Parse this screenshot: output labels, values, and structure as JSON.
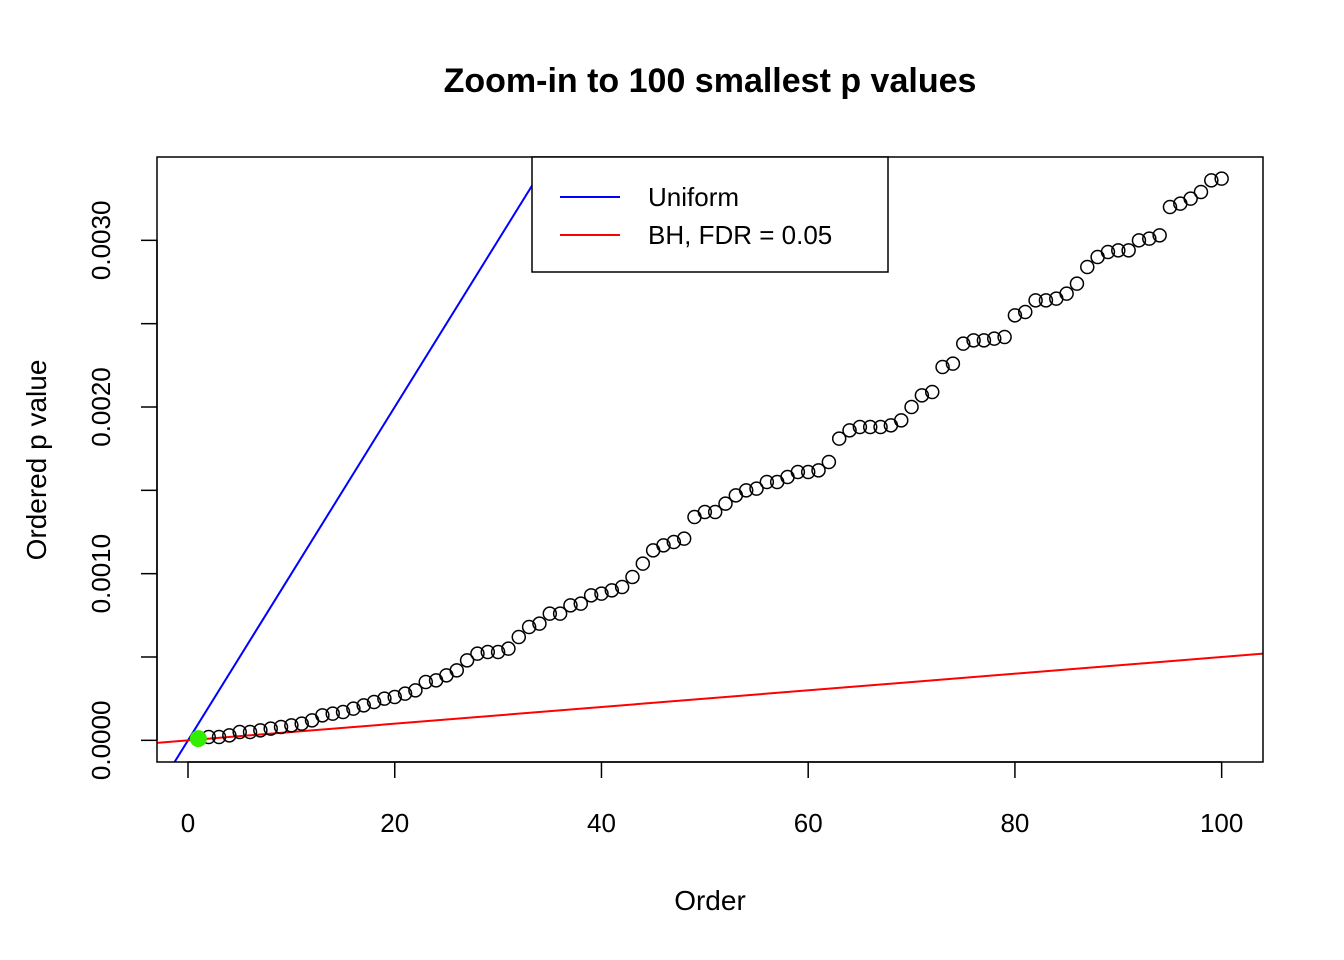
{
  "chart_data": {
    "type": "scatter",
    "title": "Zoom-in to 100 smallest p values",
    "xlabel": "Order",
    "ylabel": "Ordered p value",
    "xlim": [
      -3,
      104
    ],
    "ylim": [
      -0.00013,
      0.0035
    ],
    "xticks": [
      0,
      20,
      40,
      60,
      80,
      100
    ],
    "xtick_labels": [
      "0",
      "20",
      "40",
      "60",
      "80",
      "100"
    ],
    "yticks": [
      0,
      0.0005,
      0.001,
      0.0015,
      0.002,
      0.0025,
      0.003
    ],
    "ytick_labels": [
      "0.0000",
      "",
      "0.0010",
      "",
      "0.0020",
      "",
      "0.0030"
    ],
    "grid": false,
    "legend_position": "top-center",
    "series": [
      {
        "name": "",
        "kind": "points",
        "color": "#000000",
        "x": [
          1,
          2,
          3,
          4,
          5,
          6,
          7,
          8,
          9,
          10,
          11,
          12,
          13,
          14,
          15,
          16,
          17,
          18,
          19,
          20,
          21,
          22,
          23,
          24,
          25,
          26,
          27,
          28,
          29,
          30,
          31,
          32,
          33,
          34,
          35,
          36,
          37,
          38,
          39,
          40,
          41,
          42,
          43,
          44,
          45,
          46,
          47,
          48,
          49,
          50,
          51,
          52,
          53,
          54,
          55,
          56,
          57,
          58,
          59,
          60,
          61,
          62,
          63,
          64,
          65,
          66,
          67,
          68,
          69,
          70,
          71,
          72,
          73,
          74,
          75,
          76,
          77,
          78,
          79,
          80,
          81,
          82,
          83,
          84,
          85,
          86,
          87,
          88,
          89,
          90,
          91,
          92,
          93,
          94,
          95,
          96,
          97,
          98,
          99,
          100
        ],
        "y": [
          1e-05,
          2e-05,
          2e-05,
          3e-05,
          5e-05,
          5e-05,
          6e-05,
          7e-05,
          8e-05,
          9e-05,
          0.0001,
          0.00012,
          0.00015,
          0.00016,
          0.00017,
          0.00019,
          0.00021,
          0.00023,
          0.00025,
          0.00026,
          0.00028,
          0.0003,
          0.00035,
          0.00036,
          0.00039,
          0.00042,
          0.00048,
          0.00052,
          0.00053,
          0.00053,
          0.00055,
          0.00062,
          0.00068,
          0.0007,
          0.00076,
          0.00076,
          0.00081,
          0.00082,
          0.00087,
          0.00088,
          0.0009,
          0.00092,
          0.00098,
          0.00106,
          0.00114,
          0.00117,
          0.00119,
          0.00121,
          0.00134,
          0.00137,
          0.00137,
          0.00142,
          0.00147,
          0.0015,
          0.00151,
          0.00155,
          0.00155,
          0.00158,
          0.00161,
          0.00161,
          0.00162,
          0.00167,
          0.00181,
          0.00186,
          0.00188,
          0.00188,
          0.00188,
          0.00189,
          0.00192,
          0.002,
          0.00207,
          0.00209,
          0.00224,
          0.00226,
          0.00238,
          0.0024,
          0.0024,
          0.00241,
          0.00242,
          0.00255,
          0.00257,
          0.00264,
          0.00264,
          0.00265,
          0.00268,
          0.00274,
          0.00284,
          0.0029,
          0.00293,
          0.00294,
          0.00294,
          0.003,
          0.00301,
          0.00303,
          0.0032,
          0.00322,
          0.00325,
          0.00329,
          0.00336,
          0.00337
        ]
      },
      {
        "name": "",
        "kind": "highlight",
        "color": "#33ee00",
        "x": [
          1
        ],
        "y": [
          1e-05
        ]
      }
    ],
    "lines": [
      {
        "name": "Uniform",
        "color": "#0000ff",
        "intercept": 0,
        "slope": 0.0001
      },
      {
        "name": "BH, FDR = 0.05",
        "color": "#ff0000",
        "intercept": 0,
        "slope": 5e-06
      }
    ]
  }
}
